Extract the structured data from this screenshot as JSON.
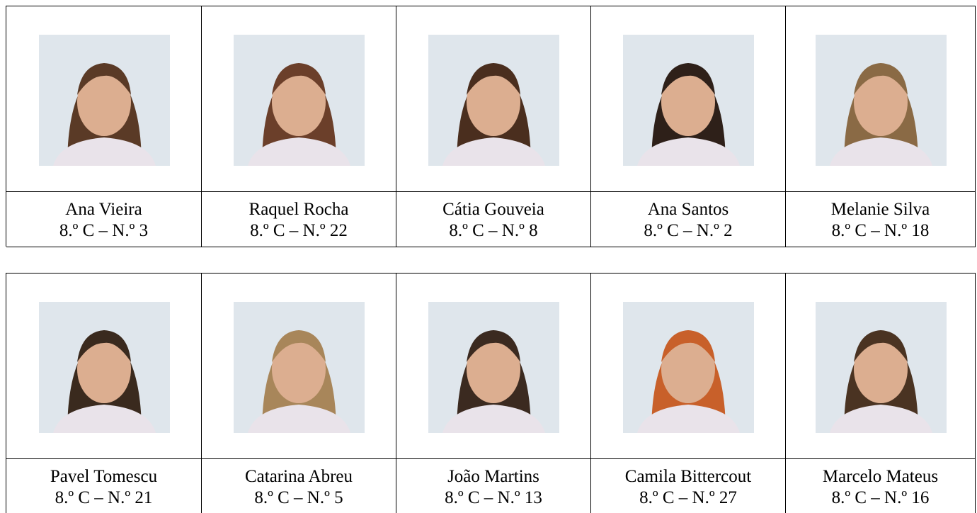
{
  "tables": [
    {
      "cells": [
        {
          "name": "Ana Vieira",
          "class": "8.º C – N.º 3"
        },
        {
          "name": "Raquel Rocha",
          "class": "8.º C – N.º 22"
        },
        {
          "name": "Cátia Gouveia",
          "class": "8.º C – N.º 8"
        },
        {
          "name": "Ana Santos",
          "class": "8.º C – N.º 2"
        },
        {
          "name": "Melanie Silva",
          "class": "8.º C – N.º 18"
        }
      ]
    },
    {
      "cells": [
        {
          "name": "Pavel Tomescu",
          "class": "8.º C – N.º 21"
        },
        {
          "name": "Catarina Abreu",
          "class": "8.º C – N.º 5"
        },
        {
          "name": "João Martins",
          "class": "8.º C – N.º 13"
        },
        {
          "name": "Camila Bittercout",
          "class": "8.º C – N.º 27"
        },
        {
          "name": "Marcelo Mateus",
          "class": "8.º C – N.º 16"
        }
      ]
    }
  ]
}
